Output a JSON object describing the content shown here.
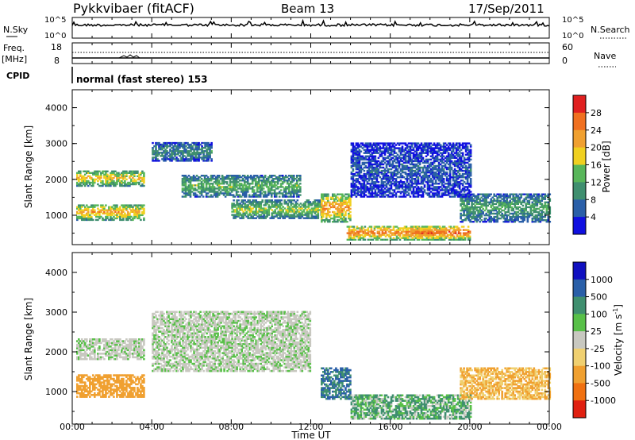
{
  "header": {
    "title": "Pykkvibaer (fitACF)",
    "beam": "Beam 13",
    "date": "17/Sep/2011"
  },
  "status_panels": {
    "nsky_label": "N.Sky",
    "nsky_ticks": [
      "10^5",
      "10^0"
    ],
    "nsearch_label": "N.Search",
    "nsearch_ticks": [
      "10^5",
      "10^0"
    ],
    "freq_label": "Freq.",
    "freq_unit": "[MHz]",
    "freq_ticks": [
      "18",
      "8"
    ],
    "nave_label": "Nave",
    "nave_ticks": [
      "60",
      "0"
    ],
    "cpid_label": "CPID",
    "cpid_text": "normal (fast stereo) 153"
  },
  "colors": {
    "power_scale": [
      "#1010e0",
      "#2a5fa8",
      "#3f8f6f",
      "#58b65a",
      "#f0d020",
      "#f0a030",
      "#f07020",
      "#e02020"
    ],
    "velocity_scale": [
      "#1010c0",
      "#2a5fa8",
      "#3f8f6f",
      "#58c048",
      "#c8c8c0",
      "#f0d070",
      "#f0a030",
      "#f07010",
      "#e02010"
    ]
  },
  "chart_data": [
    {
      "type": "heatmap",
      "name": "power",
      "xlabel": "Time UT",
      "ylabel": "Slant Range [km]",
      "xlim": [
        0,
        24
      ],
      "ylim": [
        180,
        4500
      ],
      "x_ticks": [
        "00:00",
        "04:00",
        "08:00",
        "12:00",
        "16:00",
        "20:00",
        "00:00"
      ],
      "y_ticks": [
        "1000",
        "2000",
        "3000",
        "4000"
      ],
      "colorbar_label": "Power [dB]",
      "colorbar_ticks": [
        "4",
        "8",
        "12",
        "16",
        "20",
        "24",
        "28"
      ],
      "regions": [
        {
          "t": [
            0.2,
            3.6
          ],
          "r": [
            1800,
            2250
          ],
          "level": 20
        },
        {
          "t": [
            0.2,
            3.6
          ],
          "r": [
            850,
            1300
          ],
          "level": 22
        },
        {
          "t": [
            4.0,
            7.0
          ],
          "r": [
            2500,
            3000
          ],
          "level": 10
        },
        {
          "t": [
            5.5,
            11.5
          ],
          "r": [
            1500,
            2100
          ],
          "level": 14
        },
        {
          "t": [
            8.0,
            12.5
          ],
          "r": [
            900,
            1400
          ],
          "level": 16
        },
        {
          "t": [
            12.5,
            14.0
          ],
          "r": [
            800,
            1600
          ],
          "level": 24
        },
        {
          "t": [
            13.8,
            18.5
          ],
          "r": [
            300,
            700
          ],
          "level": 26
        },
        {
          "t": [
            17.0,
            20.0
          ],
          "r": [
            300,
            700
          ],
          "level": 27
        },
        {
          "t": [
            19.5,
            24.0
          ],
          "r": [
            800,
            1600
          ],
          "level": 12
        },
        {
          "t": [
            14.0,
            20.0
          ],
          "r": [
            1500,
            3000
          ],
          "level": 6
        }
      ]
    },
    {
      "type": "heatmap",
      "name": "velocity",
      "xlabel": "Time UT",
      "ylabel": "Slant Range [km]",
      "xlim": [
        0,
        24
      ],
      "ylim": [
        180,
        4500
      ],
      "x_ticks": [
        "00:00",
        "04:00",
        "08:00",
        "12:00",
        "16:00",
        "20:00",
        "00:00"
      ],
      "y_ticks": [
        "1000",
        "2000",
        "3000",
        "4000"
      ],
      "colorbar_label": "Velocity [m s^-1]",
      "colorbar_ticks": [
        "1000",
        "500",
        "100",
        "25",
        "-25",
        "-100",
        "-500",
        "-1000"
      ],
      "regions": [
        {
          "t": [
            0.2,
            3.6
          ],
          "r": [
            1800,
            2300
          ],
          "v": 0
        },
        {
          "t": [
            0.2,
            3.6
          ],
          "r": [
            850,
            1400
          ],
          "v": -300
        },
        {
          "t": [
            4.0,
            12.0
          ],
          "r": [
            1500,
            3000
          ],
          "v": 0
        },
        {
          "t": [
            12.5,
            14.0
          ],
          "r": [
            800,
            1600
          ],
          "v": 300
        },
        {
          "t": [
            14.0,
            20.0
          ],
          "r": [
            300,
            900
          ],
          "v": 60
        },
        {
          "t": [
            19.5,
            24.0
          ],
          "r": [
            800,
            1600
          ],
          "v": -200
        }
      ]
    }
  ],
  "axis": {
    "x_title": "Time UT"
  }
}
